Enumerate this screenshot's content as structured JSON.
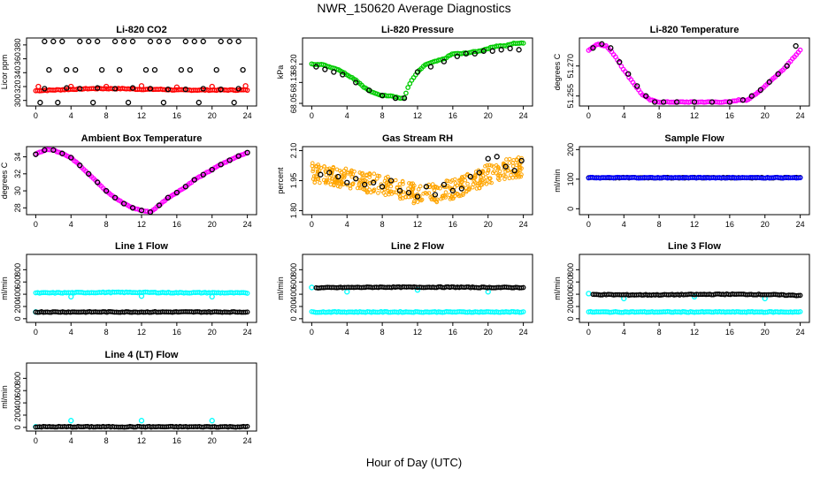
{
  "title": "NWR_150620  Average Diagnostics",
  "xlabel": "Hour of Day (UTC)",
  "x_ticks": [
    0,
    4,
    8,
    12,
    16,
    20,
    24
  ],
  "colors": {
    "black": "#000000",
    "red": "#ff0000",
    "green": "#00cc00",
    "magenta": "#ff00ff",
    "orange": "#ffa500",
    "blue": "#0000ff",
    "cyan": "#00ffff"
  },
  "chart_data": [
    {
      "type": "scatter",
      "title": "Li-820 CO2",
      "ylabel": "Licor ppm",
      "xlim": [
        0,
        24
      ],
      "ylim": [
        292,
        390
      ],
      "y_ticks": [
        300,
        320,
        340,
        360,
        380
      ],
      "series": [
        {
          "color": "red",
          "kind": "line",
          "x": [
            0,
            2,
            4,
            6,
            8,
            10,
            12,
            14,
            16,
            18,
            20,
            22,
            24
          ],
          "y": [
            314,
            315,
            316,
            317,
            317,
            317,
            316,
            316,
            315,
            315,
            315,
            315,
            315
          ]
        },
        {
          "color": "red",
          "kind": "points",
          "x": [
            0.3,
            4,
            8,
            12,
            16,
            20,
            23.8
          ],
          "y": [
            320,
            320,
            320,
            321,
            319,
            320,
            321
          ]
        },
        {
          "color": "black",
          "kind": "points",
          "x": [
            1,
            2,
            3,
            5,
            6,
            7,
            9,
            10,
            11,
            13,
            14,
            15,
            17,
            18,
            19,
            21,
            22,
            23
          ],
          "y": [
            385,
            385,
            385,
            385,
            385,
            385,
            385,
            385,
            385,
            385,
            385,
            385,
            385,
            385,
            385,
            385,
            385,
            385
          ]
        },
        {
          "color": "black",
          "kind": "points",
          "x": [
            1.5,
            3.5,
            4.5,
            7.5,
            9.5,
            12.5,
            13.5,
            16.5,
            17.5,
            20.5,
            23.5
          ],
          "y": [
            344,
            344,
            344,
            344,
            344,
            344,
            344,
            344,
            344,
            344,
            344
          ]
        },
        {
          "color": "black",
          "kind": "points",
          "x": [
            0.5,
            2.5,
            6.5,
            10.5,
            14.5,
            18.5,
            22.5
          ],
          "y": [
            297,
            297,
            297,
            297,
            297,
            297,
            297
          ]
        },
        {
          "color": "black",
          "kind": "points",
          "x": [
            1,
            3.5,
            5,
            7,
            9,
            11,
            13,
            15,
            17,
            19,
            21,
            23
          ],
          "y": [
            317,
            318,
            317,
            318,
            317,
            318,
            317,
            316,
            316,
            317,
            316,
            317
          ]
        }
      ]
    },
    {
      "type": "scatter",
      "title": "Li-820 Pressure",
      "ylabel": "kPa",
      "xlim": [
        0,
        24
      ],
      "ylim": [
        68.04,
        68.3
      ],
      "y_ticks": [
        68.05,
        68.13,
        68.2
      ],
      "y_tick_labels": [
        "68.05",
        "68.13",
        "68.20"
      ],
      "series": [
        {
          "color": "green",
          "kind": "line",
          "x": [
            0,
            1,
            2,
            3,
            4,
            5,
            6,
            7,
            8,
            9,
            10,
            10.5,
            11,
            12,
            13,
            14,
            15,
            16,
            17,
            18,
            19,
            20,
            21,
            22,
            23,
            24
          ],
          "y": [
            68.2,
            68.2,
            68.19,
            68.18,
            68.16,
            68.14,
            68.11,
            68.09,
            68.08,
            68.08,
            68.07,
            68.07,
            68.12,
            68.17,
            68.2,
            68.21,
            68.22,
            68.24,
            68.24,
            68.245,
            68.25,
            68.26,
            68.27,
            68.27,
            68.28,
            68.28
          ]
        },
        {
          "color": "black",
          "kind": "points",
          "x": [
            0.5,
            1.5,
            2.5,
            3.5,
            5,
            6.5,
            8,
            9.5,
            10.5,
            12,
            13.5,
            15,
            16.5,
            17.5,
            18.5,
            19.5,
            20.5,
            21.5,
            22.5,
            23.5
          ],
          "y": [
            68.19,
            68.18,
            68.17,
            68.16,
            68.13,
            68.1,
            68.08,
            68.07,
            68.07,
            68.17,
            68.19,
            68.21,
            68.23,
            68.24,
            68.24,
            68.25,
            68.25,
            68.255,
            68.26,
            68.255
          ]
        }
      ]
    },
    {
      "type": "scatter",
      "title": "Li-820 Temperature",
      "ylabel": "degrees C",
      "xlim": [
        0,
        24
      ],
      "ylim": [
        51.25,
        51.284
      ],
      "y_ticks": [
        51.255,
        51.27
      ],
      "y_tick_labels": [
        "51.255",
        "51.270"
      ],
      "series": [
        {
          "color": "magenta",
          "kind": "line",
          "x": [
            0,
            1,
            2,
            3,
            4,
            5,
            6,
            7,
            8,
            9,
            10,
            11,
            12,
            13,
            14,
            15,
            16,
            17,
            18,
            19,
            20,
            21,
            22,
            23,
            24
          ],
          "y": [
            51.278,
            51.281,
            51.28,
            51.275,
            51.268,
            51.262,
            51.256,
            51.253,
            51.252,
            51.252,
            51.252,
            51.252,
            51.252,
            51.252,
            51.252,
            51.252,
            51.252,
            51.253,
            51.253,
            51.256,
            51.26,
            51.264,
            51.268,
            51.273,
            51.278
          ]
        },
        {
          "color": "black",
          "kind": "points",
          "x": [
            0.5,
            1.5,
            2.5,
            3.5,
            4.5,
            5.5,
            6.5,
            7.5,
            8.5,
            10,
            12,
            14,
            16,
            17.5,
            18.5,
            19.5,
            20.5,
            21.5,
            22.5,
            23.5
          ],
          "y": [
            51.279,
            51.281,
            51.279,
            51.272,
            51.266,
            51.26,
            51.255,
            51.252,
            51.252,
            51.252,
            51.252,
            51.252,
            51.252,
            51.253,
            51.255,
            51.258,
            51.262,
            51.266,
            51.27,
            51.28
          ]
        }
      ]
    },
    {
      "type": "scatter",
      "title": "Ambient Box Temperature",
      "ylabel": "degrees C",
      "xlim": [
        0,
        24
      ],
      "ylim": [
        27.2,
        35.2
      ],
      "y_ticks": [
        28,
        30,
        32,
        34
      ],
      "series": [
        {
          "color": "magenta",
          "kind": "line",
          "x": [
            0,
            1,
            2,
            3,
            4,
            5,
            6,
            7,
            8,
            9,
            10,
            11,
            12,
            13,
            14,
            15,
            16,
            17,
            18,
            19,
            20,
            21,
            22,
            23,
            24
          ],
          "y": [
            34.3,
            34.8,
            34.8,
            34.4,
            33.9,
            33.0,
            32.0,
            31.0,
            30.0,
            29.2,
            28.5,
            28.0,
            27.7,
            27.5,
            28.3,
            29.2,
            29.8,
            30.5,
            31.3,
            31.9,
            32.5,
            33.1,
            33.6,
            34.1,
            34.5
          ]
        },
        {
          "color": "black",
          "kind": "points",
          "x": [
            0,
            1,
            2,
            3,
            4,
            5,
            6,
            7,
            8,
            9,
            10,
            11,
            12,
            13,
            14,
            15,
            16,
            17,
            18,
            19,
            20,
            21,
            22,
            23,
            24
          ],
          "y": [
            34.3,
            34.8,
            34.8,
            34.4,
            33.9,
            33.0,
            32.0,
            31.0,
            30.0,
            29.2,
            28.5,
            28.0,
            27.7,
            27.5,
            28.3,
            29.2,
            29.8,
            30.5,
            31.3,
            31.9,
            32.5,
            33.1,
            33.6,
            34.1,
            34.5
          ]
        }
      ]
    },
    {
      "type": "scatter",
      "title": "Gas Stream RH",
      "ylabel": "percent",
      "xlim": [
        0,
        24
      ],
      "ylim": [
        1.78,
        2.12
      ],
      "y_ticks": [
        1.8,
        1.95,
        2.1
      ],
      "y_tick_labels": [
        "1.80",
        "1.95",
        "2.10"
      ],
      "series": [
        {
          "color": "orange",
          "kind": "band",
          "x": [
            0,
            2,
            4,
            6,
            8,
            10,
            12,
            14,
            16,
            18,
            20,
            22,
            24
          ],
          "y": [
            1.99,
            1.98,
            1.96,
            1.94,
            1.93,
            1.91,
            1.88,
            1.89,
            1.91,
            1.94,
            1.98,
            2.01,
            2.02
          ],
          "spread": 0.05
        },
        {
          "color": "black",
          "kind": "points",
          "x": [
            1,
            2,
            3,
            4,
            5,
            6,
            7,
            8,
            9,
            10,
            11,
            12,
            13,
            14,
            15,
            16,
            17,
            18,
            19,
            20,
            21,
            22,
            23,
            23.8
          ],
          "y": [
            1.98,
            1.99,
            1.97,
            1.94,
            1.96,
            1.93,
            1.94,
            1.92,
            1.95,
            1.9,
            1.89,
            1.87,
            1.92,
            1.88,
            1.93,
            1.9,
            1.91,
            1.97,
            1.99,
            2.06,
            2.07,
            2.02,
            2.0,
            2.05
          ]
        }
      ]
    },
    {
      "type": "scatter",
      "title": "Sample Flow",
      "ylabel": "ml/min",
      "xlim": [
        0,
        24
      ],
      "ylim": [
        -20,
        210
      ],
      "y_ticks": [
        0,
        100,
        200
      ],
      "series": [
        {
          "color": "black",
          "kind": "line",
          "x": [
            0,
            24
          ],
          "y": [
            105,
            105
          ]
        },
        {
          "color": "blue",
          "kind": "line",
          "x": [
            0,
            24
          ],
          "y": [
            105,
            105
          ]
        }
      ]
    },
    {
      "type": "scatter",
      "title": "Line 1 Flow",
      "ylabel": "ml/min",
      "xlim": [
        0,
        24
      ],
      "ylim": [
        -60,
        1050
      ],
      "y_ticks": [
        0,
        200,
        400,
        600,
        800
      ],
      "series": [
        {
          "color": "cyan",
          "kind": "line",
          "x": [
            0,
            4,
            8,
            12,
            16,
            20,
            24
          ],
          "y": [
            420,
            425,
            430,
            430,
            425,
            425,
            420
          ]
        },
        {
          "color": "cyan",
          "kind": "points",
          "x": [
            0,
            4,
            12,
            20
          ],
          "y": [
            110,
            360,
            370,
            360
          ]
        },
        {
          "color": "black",
          "kind": "line",
          "x": [
            0,
            24
          ],
          "y": [
            110,
            110
          ]
        }
      ]
    },
    {
      "type": "scatter",
      "title": "Line 2 Flow",
      "ylabel": "ml/min",
      "xlim": [
        0,
        24
      ],
      "ylim": [
        -60,
        1050
      ],
      "y_ticks": [
        0,
        200,
        400,
        600,
        800
      ],
      "series": [
        {
          "color": "cyan",
          "kind": "line",
          "x": [
            0,
            24
          ],
          "y": [
            110,
            110
          ]
        },
        {
          "color": "cyan",
          "kind": "points",
          "x": [
            0,
            4,
            12,
            20
          ],
          "y": [
            510,
            440,
            470,
            440
          ]
        },
        {
          "color": "black",
          "kind": "line",
          "x": [
            0.5,
            4,
            8,
            12,
            16,
            20,
            24
          ],
          "y": [
            505,
            510,
            515,
            515,
            515,
            510,
            510
          ]
        }
      ]
    },
    {
      "type": "scatter",
      "title": "Line 3 Flow",
      "ylabel": "ml/min",
      "xlim": [
        0,
        24
      ],
      "ylim": [
        -60,
        1050
      ],
      "y_ticks": [
        0,
        200,
        400,
        600,
        800
      ],
      "series": [
        {
          "color": "cyan",
          "kind": "line",
          "x": [
            0,
            24
          ],
          "y": [
            110,
            110
          ]
        },
        {
          "color": "cyan",
          "kind": "points",
          "x": [
            0,
            4,
            12,
            20
          ],
          "y": [
            410,
            330,
            360,
            330
          ]
        },
        {
          "color": "black",
          "kind": "line",
          "x": [
            0.5,
            4,
            8,
            12,
            16,
            20,
            24
          ],
          "y": [
            395,
            390,
            390,
            395,
            400,
            395,
            380
          ]
        }
      ]
    },
    {
      "type": "scatter",
      "title": "Line 4 (LT) Flow",
      "ylabel": "ml/min",
      "xlim": [
        0,
        24
      ],
      "ylim": [
        -60,
        1050
      ],
      "y_ticks": [
        0,
        200,
        400,
        600,
        800
      ],
      "series": [
        {
          "color": "cyan",
          "kind": "points",
          "x": [
            0,
            4,
            12,
            20
          ],
          "y": [
            10,
            110,
            110,
            110
          ]
        },
        {
          "color": "black",
          "kind": "line",
          "x": [
            0,
            24
          ],
          "y": [
            10,
            10
          ]
        }
      ]
    }
  ]
}
